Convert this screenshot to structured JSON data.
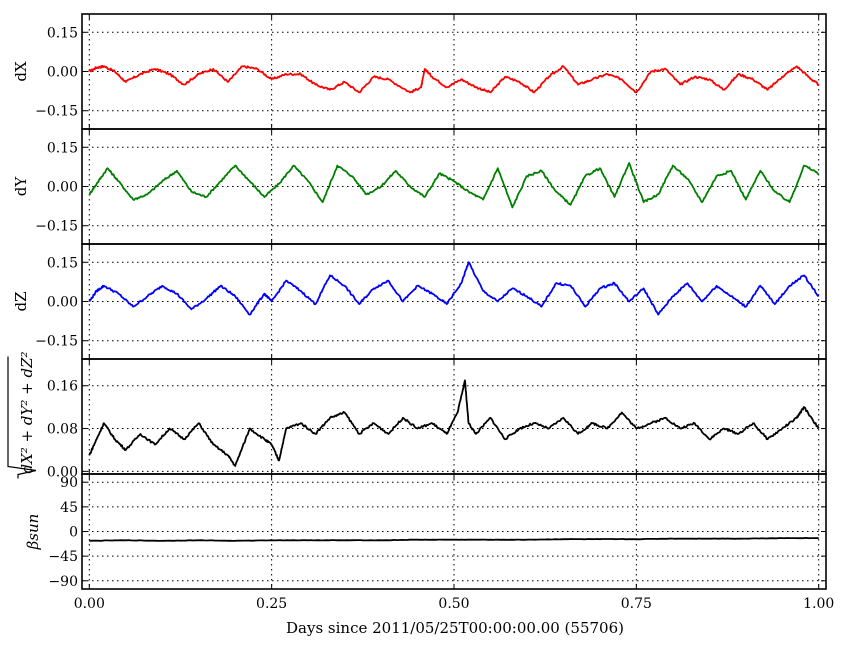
{
  "chart_data": {
    "type": "line",
    "xlabel": "Days since 2011/05/25T00:00:00.00 (55706)",
    "xlim": [
      -0.01,
      1.01
    ],
    "xticks": [
      0.0,
      0.25,
      0.5,
      0.75,
      1.0
    ],
    "xtick_labels": [
      "0.00",
      "0.25",
      "0.50",
      "0.75",
      "1.00"
    ],
    "grid": true,
    "panels": [
      {
        "ylabel": "dX",
        "color": "#ff0000",
        "ylim": [
          -0.22,
          0.22
        ],
        "yticks": [
          -0.15,
          0.0,
          0.15
        ],
        "ytick_labels": [
          "−0.15",
          "0.00",
          "0.15"
        ],
        "series": {
          "x": [
            0.0,
            0.01,
            0.02,
            0.035,
            0.05,
            0.07,
            0.09,
            0.11,
            0.13,
            0.15,
            0.17,
            0.19,
            0.21,
            0.23,
            0.25,
            0.27,
            0.29,
            0.31,
            0.33,
            0.35,
            0.37,
            0.39,
            0.41,
            0.44,
            0.455,
            0.46,
            0.47,
            0.49,
            0.51,
            0.53,
            0.55,
            0.57,
            0.59,
            0.61,
            0.63,
            0.65,
            0.67,
            0.69,
            0.71,
            0.73,
            0.75,
            0.77,
            0.79,
            0.81,
            0.83,
            0.85,
            0.87,
            0.89,
            0.91,
            0.93,
            0.95,
            0.97,
            0.99,
            1.0
          ],
          "y": [
            0.0,
            0.015,
            0.02,
            0.0,
            -0.04,
            -0.01,
            0.01,
            -0.01,
            -0.05,
            -0.01,
            0.01,
            -0.04,
            0.02,
            0.01,
            -0.03,
            -0.01,
            -0.01,
            -0.05,
            -0.07,
            -0.04,
            -0.08,
            -0.02,
            -0.03,
            -0.08,
            -0.06,
            0.01,
            -0.02,
            -0.06,
            -0.03,
            -0.06,
            -0.08,
            -0.02,
            -0.04,
            -0.08,
            -0.02,
            0.02,
            -0.05,
            -0.03,
            -0.01,
            -0.03,
            -0.08,
            0.0,
            0.01,
            -0.05,
            -0.02,
            -0.03,
            -0.07,
            -0.01,
            -0.03,
            -0.07,
            -0.02,
            0.02,
            -0.03,
            -0.05
          ]
        }
      },
      {
        "ylabel": "dY",
        "color": "#007f00",
        "ylim": [
          -0.22,
          0.22
        ],
        "yticks": [
          -0.15,
          0.0,
          0.15
        ],
        "ytick_labels": [
          "−0.15",
          "0.00",
          "0.15"
        ],
        "series": {
          "x": [
            0.0,
            0.01,
            0.025,
            0.04,
            0.06,
            0.08,
            0.1,
            0.12,
            0.14,
            0.16,
            0.18,
            0.2,
            0.22,
            0.24,
            0.26,
            0.28,
            0.3,
            0.32,
            0.34,
            0.36,
            0.38,
            0.4,
            0.42,
            0.44,
            0.46,
            0.48,
            0.5,
            0.52,
            0.54,
            0.56,
            0.58,
            0.6,
            0.62,
            0.64,
            0.66,
            0.68,
            0.7,
            0.72,
            0.74,
            0.76,
            0.78,
            0.8,
            0.82,
            0.84,
            0.86,
            0.88,
            0.9,
            0.92,
            0.94,
            0.96,
            0.98,
            1.0
          ],
          "y": [
            -0.03,
            0.01,
            0.07,
            0.02,
            -0.05,
            -0.03,
            0.02,
            0.06,
            -0.02,
            -0.04,
            0.02,
            0.08,
            0.02,
            -0.04,
            0.01,
            0.08,
            0.02,
            -0.06,
            0.08,
            0.04,
            -0.03,
            0.0,
            0.06,
            0.0,
            -0.04,
            0.05,
            0.02,
            -0.02,
            -0.05,
            0.07,
            -0.08,
            0.04,
            0.06,
            -0.02,
            -0.07,
            0.04,
            0.07,
            -0.04,
            0.09,
            -0.06,
            -0.03,
            0.08,
            0.03,
            -0.06,
            0.04,
            0.06,
            -0.05,
            0.06,
            -0.02,
            -0.06,
            0.08,
            0.05
          ]
        }
      },
      {
        "ylabel": "dZ",
        "color": "#0000ff",
        "ylim": [
          -0.22,
          0.22
        ],
        "yticks": [
          -0.15,
          0.0,
          0.15
        ],
        "ytick_labels": [
          "−0.15",
          "0.00",
          "0.15"
        ],
        "series": {
          "x": [
            0.0,
            0.01,
            0.02,
            0.04,
            0.06,
            0.08,
            0.1,
            0.12,
            0.14,
            0.16,
            0.18,
            0.2,
            0.22,
            0.24,
            0.25,
            0.27,
            0.29,
            0.31,
            0.33,
            0.35,
            0.37,
            0.39,
            0.41,
            0.43,
            0.45,
            0.47,
            0.49,
            0.51,
            0.52,
            0.54,
            0.56,
            0.58,
            0.6,
            0.62,
            0.64,
            0.66,
            0.68,
            0.7,
            0.72,
            0.74,
            0.76,
            0.78,
            0.8,
            0.82,
            0.84,
            0.86,
            0.88,
            0.9,
            0.92,
            0.94,
            0.96,
            0.98,
            1.0
          ],
          "y": [
            0.0,
            0.04,
            0.06,
            0.03,
            -0.02,
            0.02,
            0.06,
            0.03,
            -0.03,
            0.01,
            0.06,
            0.02,
            -0.05,
            0.03,
            0.0,
            0.08,
            0.04,
            -0.01,
            0.1,
            0.06,
            -0.01,
            0.05,
            0.08,
            0.0,
            0.06,
            0.03,
            -0.01,
            0.07,
            0.15,
            0.04,
            0.0,
            0.05,
            0.02,
            -0.02,
            0.07,
            0.06,
            -0.02,
            0.05,
            0.07,
            0.0,
            0.05,
            -0.05,
            0.02,
            0.07,
            0.0,
            0.06,
            0.02,
            -0.02,
            0.06,
            -0.01,
            0.06,
            0.1,
            0.02
          ]
        }
      },
      {
        "ylabel": "√(dX² + dY² + dZ²)",
        "color": "#000000",
        "ylim": [
          -0.005,
          0.21
        ],
        "yticks": [
          0.0,
          0.08,
          0.16
        ],
        "ytick_labels": [
          "0.00",
          "0.08",
          "0.16"
        ],
        "series": {
          "x": [
            0.0,
            0.01,
            0.02,
            0.035,
            0.05,
            0.07,
            0.09,
            0.11,
            0.13,
            0.15,
            0.17,
            0.19,
            0.2,
            0.22,
            0.24,
            0.25,
            0.26,
            0.27,
            0.29,
            0.31,
            0.33,
            0.35,
            0.37,
            0.39,
            0.41,
            0.43,
            0.45,
            0.47,
            0.49,
            0.505,
            0.515,
            0.52,
            0.53,
            0.55,
            0.57,
            0.59,
            0.61,
            0.63,
            0.65,
            0.67,
            0.69,
            0.71,
            0.73,
            0.75,
            0.77,
            0.79,
            0.81,
            0.83,
            0.85,
            0.87,
            0.89,
            0.91,
            0.93,
            0.95,
            0.97,
            0.98,
            1.0
          ],
          "y": [
            0.03,
            0.06,
            0.09,
            0.06,
            0.04,
            0.07,
            0.05,
            0.08,
            0.06,
            0.09,
            0.05,
            0.03,
            0.01,
            0.08,
            0.06,
            0.05,
            0.02,
            0.08,
            0.09,
            0.07,
            0.1,
            0.11,
            0.07,
            0.09,
            0.07,
            0.1,
            0.08,
            0.09,
            0.07,
            0.11,
            0.17,
            0.09,
            0.07,
            0.1,
            0.06,
            0.08,
            0.09,
            0.08,
            0.1,
            0.07,
            0.09,
            0.08,
            0.11,
            0.08,
            0.09,
            0.1,
            0.08,
            0.09,
            0.06,
            0.08,
            0.07,
            0.09,
            0.06,
            0.08,
            0.1,
            0.12,
            0.08
          ]
        }
      },
      {
        "ylabel": "βsun",
        "color": "#000000",
        "ylim": [
          -105,
          105
        ],
        "yticks": [
          -90,
          -45,
          0,
          45,
          90
        ],
        "ytick_labels": [
          "−90",
          "−45",
          "0",
          "45",
          "90"
        ],
        "series": {
          "x": [
            0.0,
            0.05,
            0.1,
            0.15,
            0.2,
            0.25,
            0.3,
            0.35,
            0.4,
            0.45,
            0.5,
            0.55,
            0.6,
            0.65,
            0.7,
            0.75,
            0.8,
            0.85,
            0.9,
            0.95,
            1.0
          ],
          "y": [
            -17,
            -16,
            -17,
            -16,
            -17,
            -16,
            -16,
            -16,
            -16,
            -15,
            -15,
            -15,
            -15,
            -14,
            -14,
            -14,
            -13,
            -13,
            -13,
            -12,
            -12
          ]
        }
      }
    ]
  }
}
